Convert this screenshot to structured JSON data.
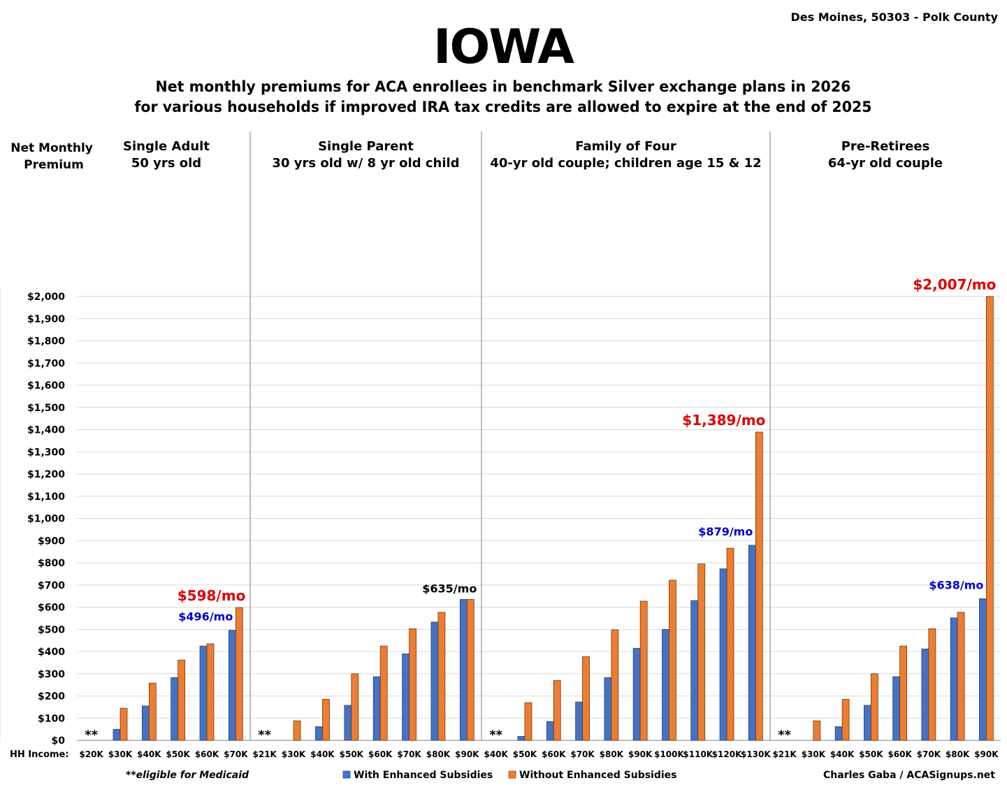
{
  "header": {
    "location": "Des Moines, 50303 - Polk County",
    "title": "IOWA",
    "subtitle_line1": "Net monthly premiums for ACA enrollees in benchmark Silver exchange plans in 2026",
    "subtitle_line2": "for various households if improved IRA tax credits are allowed to expire at the end of 2025"
  },
  "footer": {
    "medicaid_note": "**eligible for Medicaid",
    "credit": "Charles Gaba / ACASignups.net"
  },
  "colors": {
    "with": "#4472C4",
    "without": "#ED7D31",
    "red_label": "#E00000",
    "blue_label": "#0000CC",
    "black_label": "#000000"
  },
  "chart_data": {
    "type": "bar",
    "ylabel": "Net Monthly Premium",
    "xlabel": "HH Income:",
    "ylim": [
      0,
      2000
    ],
    "yticks": [
      "$0",
      "$100",
      "$200",
      "$300",
      "$400",
      "$500",
      "$600",
      "$700",
      "$800",
      "$900",
      "$1,000",
      "$1,100",
      "$1,200",
      "$1,300",
      "$1,400",
      "$1,500",
      "$1,600",
      "$1,700",
      "$1,800",
      "$1,900",
      "$2,000"
    ],
    "grid": true,
    "legend": "bottom",
    "series_names": [
      "With Enhanced Subsidies",
      "Without Enhanced Subsidies"
    ],
    "medicaid_marker": "**",
    "groups": [
      {
        "title_line1": "Single Adult",
        "title_line2": "50 yrs old",
        "categories": [
          "$20K",
          "$30K",
          "$40K",
          "$50K",
          "$60K",
          "$70K"
        ],
        "with": [
          0,
          50,
          155,
          283,
          425,
          496
        ],
        "without": [
          0,
          145,
          258,
          362,
          435,
          598
        ],
        "medicaid": [
          0
        ],
        "annotations": [
          {
            "text": "$598/mo",
            "index": 5,
            "series": "without",
            "color": "red"
          },
          {
            "text": "$496/mo",
            "index": 5,
            "series": "with",
            "color": "blue"
          }
        ]
      },
      {
        "title_line1": "Single Parent",
        "title_line2": "30 yrs old w/ 8 yr old child",
        "categories": [
          "$21K",
          "$30K",
          "$40K",
          "$50K",
          "$60K",
          "$70K",
          "$80K",
          "$90K"
        ],
        "with": [
          0,
          0,
          62,
          158,
          287,
          390,
          533,
          635
        ],
        "without": [
          0,
          88,
          185,
          300,
          425,
          503,
          577,
          635
        ],
        "medicaid": [
          0
        ],
        "annotations": [
          {
            "text": "$635/mo",
            "index": 7,
            "series": "without",
            "color": "black"
          }
        ]
      },
      {
        "title_line1": "Family of Four",
        "title_line2": "40-yr old couple; children age 15 & 12",
        "categories": [
          "$40K",
          "$50K",
          "$60K",
          "$70K",
          "$80K",
          "$90K",
          "$100K",
          "$110K",
          "$120K",
          "$130K"
        ],
        "with": [
          0,
          18,
          85,
          173,
          283,
          415,
          500,
          630,
          773,
          879
        ],
        "without": [
          0,
          170,
          270,
          377,
          498,
          627,
          722,
          795,
          866,
          1389
        ],
        "medicaid": [
          0
        ],
        "annotations": [
          {
            "text": "$1,389/mo",
            "index": 9,
            "series": "without",
            "color": "red"
          },
          {
            "text": "$879/mo",
            "index": 9,
            "series": "with",
            "color": "blue"
          }
        ]
      },
      {
        "title_line1": "Pre-Retirees",
        "title_line2": "64-yr old couple",
        "categories": [
          "$21K",
          "$30K",
          "$40K",
          "$50K",
          "$60K",
          "$70K",
          "$80K",
          "$90K"
        ],
        "with": [
          0,
          0,
          62,
          158,
          287,
          412,
          552,
          638
        ],
        "without": [
          0,
          88,
          185,
          300,
          425,
          503,
          577,
          2007
        ],
        "medicaid": [
          0
        ],
        "annotations": [
          {
            "text": "$2,007/mo",
            "index": 7,
            "series": "without",
            "color": "red"
          },
          {
            "text": "$638/mo",
            "index": 7,
            "series": "with",
            "color": "blue"
          }
        ]
      }
    ]
  }
}
